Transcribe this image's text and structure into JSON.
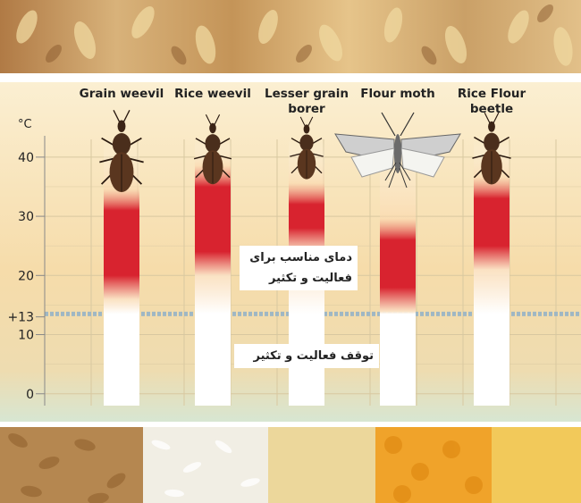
{
  "chart_data": {
    "type": "range-bar",
    "unit_label": "°C",
    "y_ticks": [
      {
        "value": 40,
        "label": "40"
      },
      {
        "value": 30,
        "label": "30"
      },
      {
        "value": 20,
        "label": "20"
      },
      {
        "value": 13,
        "label": "+13"
      },
      {
        "value": 10,
        "label": "10"
      },
      {
        "value": 0,
        "label": "0"
      }
    ],
    "ylim": [
      -2,
      43
    ],
    "threshold": {
      "value": 13.5
    },
    "grid": true,
    "insects": [
      {
        "name": "Grain weevil",
        "label_lines": [
          "Grain weevil"
        ],
        "optimal_range": [
          20,
          31
        ],
        "icon": "grain-weevil-icon"
      },
      {
        "name": "Rice weevil",
        "label_lines": [
          "Rice weevil"
        ],
        "optimal_range": [
          24,
          35
        ],
        "icon": "rice-weevil-icon"
      },
      {
        "name": "Lesser grain borer",
        "label_lines": [
          "Lesser grain",
          "borer"
        ],
        "optimal_range": [
          28,
          32
        ],
        "icon": "lesser-grain-borer-icon"
      },
      {
        "name": "Flour moth",
        "label_lines": [
          "Flour moth"
        ],
        "optimal_range": [
          18,
          26
        ],
        "icon": "flour-moth-icon"
      },
      {
        "name": "Rice Flour beetle",
        "label_lines": [
          "Rice Flour",
          "beetle"
        ],
        "optimal_range": [
          25,
          33
        ],
        "icon": "rice-flour-beetle-icon"
      }
    ],
    "annotations": {
      "optimal": [
        "دمای مناسب برای",
        "فعالیت و تکثیر"
      ],
      "stopped": "توقف فعالیت و تکثیر"
    }
  },
  "colors": {
    "optimal": "#d8232f",
    "bar_white": "#ffffff",
    "grid": "#d8c8a0",
    "threshold": "#9fb7c4",
    "panel_top": "#fbecc8",
    "panel_bottom": "#dde9d6",
    "text": "#222222"
  },
  "photos": {
    "top": "wheat-ears-photo",
    "bottom": [
      "wheat-grains",
      "rice-grains",
      "flour",
      "corn-kernels",
      "corn-meal"
    ]
  }
}
